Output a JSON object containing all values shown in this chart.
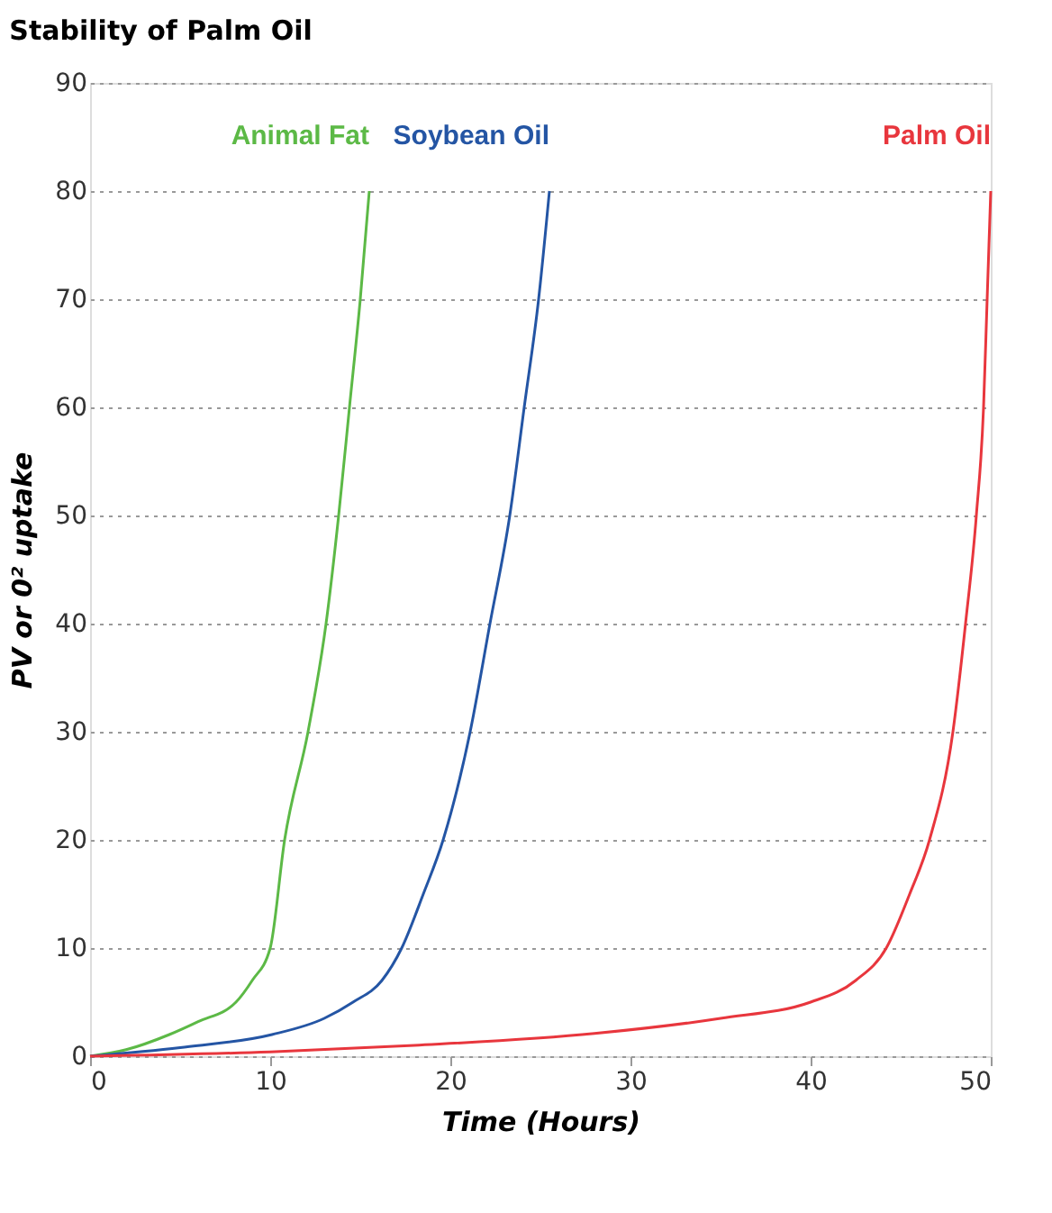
{
  "chart_data": {
    "type": "line",
    "title": "Stability of Palm Oil",
    "xlabel": "Time (Hours)",
    "ylabel": "PV or 0² uptake",
    "xlim": [
      0,
      50
    ],
    "xticks": [
      0,
      10,
      20,
      30,
      40,
      50
    ],
    "ylim": [
      0,
      90
    ],
    "yticks": [
      0,
      10,
      20,
      30,
      40,
      50,
      60,
      70,
      80,
      90
    ],
    "grid": "y",
    "legend": false,
    "line_style": "solid",
    "marker": "none",
    "series": [
      {
        "name": "Animal Fat",
        "color": "#5cb946",
        "x": [
          0,
          2,
          4.4,
          6,
          8.1,
          9,
          10,
          10.8,
          12.1,
          13.1,
          13.8,
          14.4,
          15,
          15.5
        ],
        "values": [
          0,
          0.6,
          2,
          3.2,
          5,
          7,
          10,
          20,
          30,
          40,
          50,
          60,
          70,
          80
        ]
      },
      {
        "name": "Soybean Oil",
        "color": "#2455a4",
        "x": [
          0,
          5,
          10.1,
          13,
          14.6,
          16.2,
          17.3,
          18.5,
          19.6,
          21.1,
          22.2,
          23.3,
          24.1,
          24.9,
          25.5
        ],
        "values": [
          0,
          0.8,
          2,
          3.5,
          5,
          7,
          10,
          15,
          20,
          30,
          40,
          50,
          60,
          70,
          80
        ]
      },
      {
        "name": "Palm Oil",
        "color": "#e8363d",
        "x": [
          0,
          10,
          18,
          28,
          35,
          40,
          42.5,
          44.2,
          45.5,
          46.6,
          47.9,
          48.6,
          49.2,
          49.6,
          49.8,
          50
        ],
        "values": [
          0,
          0.4,
          1,
          2.1,
          3.5,
          5,
          7,
          10,
          15,
          20,
          30,
          40,
          50,
          60,
          70,
          80
        ]
      }
    ]
  }
}
